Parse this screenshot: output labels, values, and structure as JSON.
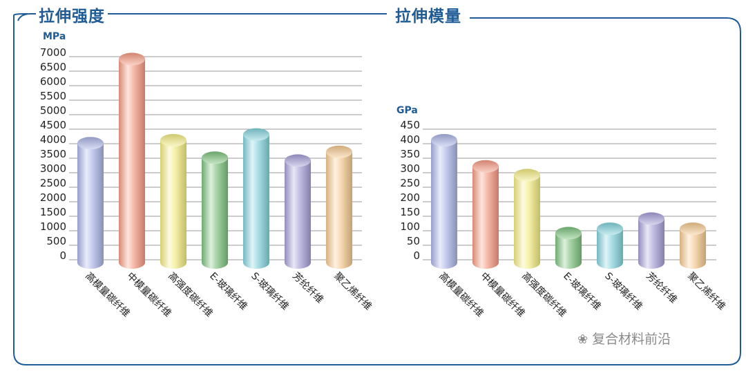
{
  "colors": {
    "frame": "#1f5c96",
    "accent_text": "#1f5c96",
    "gridline": "#9a9a9a",
    "bar_palette": [
      "#aab4e6",
      "#f79a82",
      "#f3ec82",
      "#7cc27c",
      "#82d2dc",
      "#a59fd8",
      "#f5c98f"
    ]
  },
  "watermark": {
    "icon": "wechat-icon",
    "text": "复合材料前沿"
  },
  "chart_data": [
    {
      "type": "bar",
      "title": "拉伸强度",
      "ylabel": "MPa",
      "ylim": [
        0,
        7000
      ],
      "yticks": [
        "7000",
        "6500",
        "6000",
        "5500",
        "5000",
        "4500",
        "4000",
        "3500",
        "3000",
        "2500",
        "2000",
        "1500",
        "1000",
        "500",
        "0"
      ],
      "grid": true,
      "categories": [
        "高模量碳纤维",
        "中模量碳纤维",
        "高强度碳纤维",
        "E-玻璃纤维",
        "S-玻璃纤维",
        "芳纶纤维",
        "聚乙烯纤维"
      ],
      "values": [
        3900,
        6800,
        4000,
        3400,
        4200,
        3300,
        3600
      ]
    },
    {
      "type": "bar",
      "title": "拉伸模量",
      "ylabel": "GPa",
      "ylim": [
        0,
        450
      ],
      "yticks": [
        "450",
        "400",
        "350",
        "300",
        "250",
        "200",
        "150",
        "100",
        "50",
        "0"
      ],
      "grid": true,
      "categories": [
        "高模量碳纤维",
        "中模量碳纤维",
        "高强度碳纤维",
        "E-玻璃纤维",
        "S-玻璃纤维",
        "芳纶纤维",
        "聚乙烯纤维"
      ],
      "values": [
        400,
        310,
        280,
        80,
        95,
        130,
        95
      ]
    }
  ]
}
